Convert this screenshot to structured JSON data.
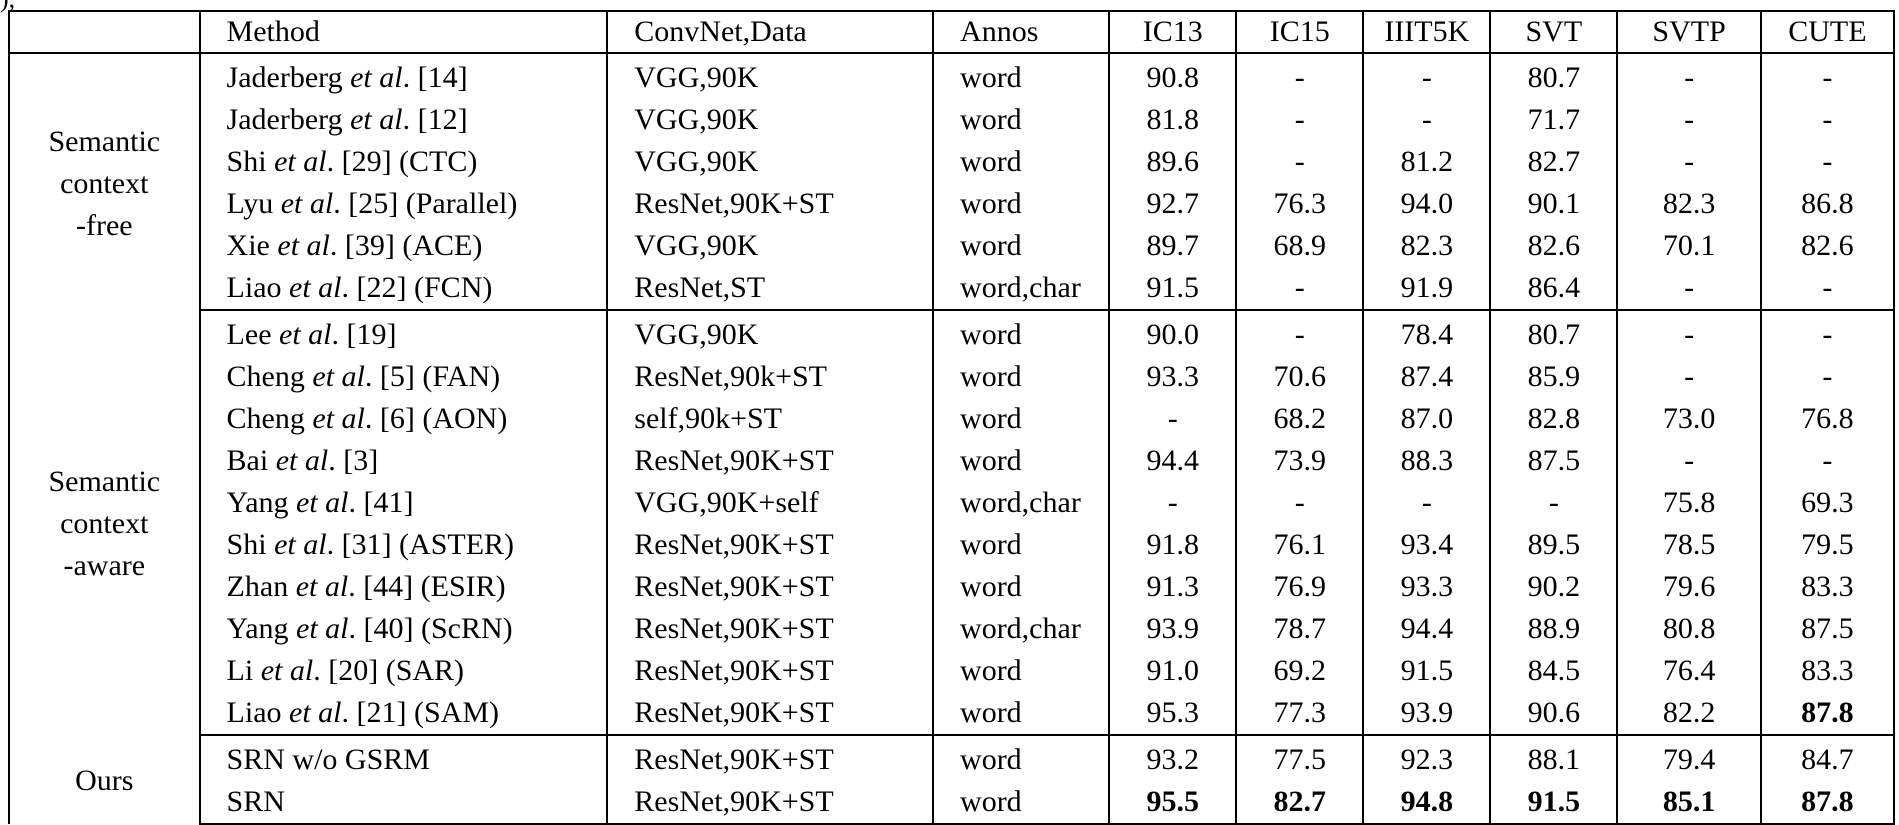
{
  "corner_text": "),",
  "table": {
    "headers": [
      "Method",
      "ConvNet,Data",
      "Annos",
      "IC13",
      "IC15",
      "IIIT5K",
      "SVT",
      "SVTP",
      "CUTE"
    ],
    "groups": [
      {
        "label": [
          "Semantic",
          "context",
          "-free"
        ],
        "rows": [
          {
            "author": "Jaderberg",
            "etal": "et al",
            "ref": ". [14]",
            "conv": "VGG,90K",
            "annos": "word",
            "ic13": "90.8",
            "ic15": "-",
            "iiit5k": "-",
            "svt": "80.7",
            "svtp": "-",
            "cute": "-"
          },
          {
            "author": "Jaderberg",
            "etal": "et al",
            "ref": ". [12]",
            "conv": "VGG,90K",
            "annos": "word",
            "ic13": "81.8",
            "ic15": "-",
            "iiit5k": "-",
            "svt": "71.7",
            "svtp": "-",
            "cute": "-"
          },
          {
            "author": "Shi",
            "etal": "et al",
            "ref": ". [29] (CTC)",
            "conv": "VGG,90K",
            "annos": "word",
            "ic13": "89.6",
            "ic15": "-",
            "iiit5k": "81.2",
            "svt": "82.7",
            "svtp": "-",
            "cute": "-"
          },
          {
            "author": "Lyu",
            "etal": "et al",
            "ref": ". [25] (Parallel)",
            "conv": "ResNet,90K+ST",
            "annos": "word",
            "ic13": "92.7",
            "ic15": "76.3",
            "iiit5k": "94.0",
            "svt": "90.1",
            "svtp": "82.3",
            "cute": "86.8"
          },
          {
            "author": "Xie",
            "etal": "et al",
            "ref": ". [39] (ACE)",
            "conv": "VGG,90K",
            "annos": "word",
            "ic13": "89.7",
            "ic15": "68.9",
            "iiit5k": "82.3",
            "svt": "82.6",
            "svtp": "70.1",
            "cute": "82.6"
          },
          {
            "author": "Liao",
            "etal": "et al",
            "ref": ". [22] (FCN)",
            "conv": "ResNet,ST",
            "annos": "word,char",
            "ic13": "91.5",
            "ic15": "-",
            "iiit5k": "91.9",
            "svt": "86.4",
            "svtp": "-",
            "cute": "-"
          }
        ]
      },
      {
        "label": [
          "Semantic",
          "context",
          "-aware"
        ],
        "rows": [
          {
            "author": "Lee",
            "etal": "et al",
            "ref": ". [19]",
            "conv": "VGG,90K",
            "annos": "word",
            "ic13": "90.0",
            "ic15": "-",
            "iiit5k": "78.4",
            "svt": "80.7",
            "svtp": "-",
            "cute": "-"
          },
          {
            "author": "Cheng",
            "etal": "et al",
            "ref": ". [5] (FAN)",
            "conv": "ResNet,90k+ST",
            "annos": "word",
            "ic13": "93.3",
            "ic15": "70.6",
            "iiit5k": "87.4",
            "svt": "85.9",
            "svtp": "-",
            "cute": "-"
          },
          {
            "author": "Cheng",
            "etal": "et al",
            "ref": ". [6] (AON)",
            "conv": "self,90k+ST",
            "annos": "word",
            "ic13": "-",
            "ic15": "68.2",
            "iiit5k": "87.0",
            "svt": "82.8",
            "svtp": "73.0",
            "cute": "76.8"
          },
          {
            "author": "Bai",
            "etal": "et al",
            "ref": ". [3]",
            "conv": "ResNet,90K+ST",
            "annos": "word",
            "ic13": "94.4",
            "ic15": "73.9",
            "iiit5k": "88.3",
            "svt": "87.5",
            "svtp": "-",
            "cute": "-"
          },
          {
            "author": "Yang",
            "etal": "et al",
            "ref": ". [41]",
            "conv": "VGG,90K+self",
            "annos": "word,char",
            "ic13": "-",
            "ic15": "-",
            "iiit5k": "-",
            "svt": "-",
            "svtp": "75.8",
            "cute": "69.3"
          },
          {
            "author": "Shi",
            "etal": "et al",
            "ref": ". [31] (ASTER)",
            "conv": "ResNet,90K+ST",
            "annos": "word",
            "ic13": "91.8",
            "ic15": "76.1",
            "iiit5k": "93.4",
            "svt": "89.5",
            "svtp": "78.5",
            "cute": "79.5"
          },
          {
            "author": "Zhan",
            "etal": "et al",
            "ref": ". [44] (ESIR)",
            "conv": "ResNet,90K+ST",
            "annos": "word",
            "ic13": "91.3",
            "ic15": "76.9",
            "iiit5k": "93.3",
            "svt": "90.2",
            "svtp": "79.6",
            "cute": "83.3"
          },
          {
            "author": "Yang",
            "etal": "et al",
            "ref": ". [40] (ScRN)",
            "conv": "ResNet,90K+ST",
            "annos": "word,char",
            "ic13": "93.9",
            "ic15": "78.7",
            "iiit5k": "94.4",
            "svt": "88.9",
            "svtp": "80.8",
            "cute": "87.5"
          },
          {
            "author": "Li",
            "etal": "et al",
            "ref": ". [20] (SAR)",
            "conv": "ResNet,90K+ST",
            "annos": "word",
            "ic13": "91.0",
            "ic15": "69.2",
            "iiit5k": "91.5",
            "svt": "84.5",
            "svtp": "76.4",
            "cute": "83.3"
          },
          {
            "author": "Liao",
            "etal": "et al",
            "ref": ". [21] (SAM)",
            "conv": "ResNet,90K+ST",
            "annos": "word",
            "ic13": "95.3",
            "ic15": "77.3",
            "iiit5k": "93.9",
            "svt": "90.6",
            "svtp": "82.2",
            "cute": "87.8",
            "bold": [
              "cute"
            ]
          }
        ]
      },
      {
        "label": [
          "Ours"
        ],
        "rows": [
          {
            "author": "SRN w/o GSRM",
            "etal": "",
            "ref": "",
            "conv": "ResNet,90K+ST",
            "annos": "word",
            "ic13": "93.2",
            "ic15": "77.5",
            "iiit5k": "92.3",
            "svt": "88.1",
            "svtp": "79.4",
            "cute": "84.7"
          },
          {
            "author": "SRN",
            "etal": "",
            "ref": "",
            "conv": "ResNet,90K+ST",
            "annos": "word",
            "ic13": "95.5",
            "ic15": "82.7",
            "iiit5k": "94.8",
            "svt": "91.5",
            "svtp": "85.1",
            "cute": "87.8",
            "bold": [
              "ic13",
              "ic15",
              "iiit5k",
              "svt",
              "svtp",
              "cute"
            ]
          }
        ]
      }
    ]
  }
}
